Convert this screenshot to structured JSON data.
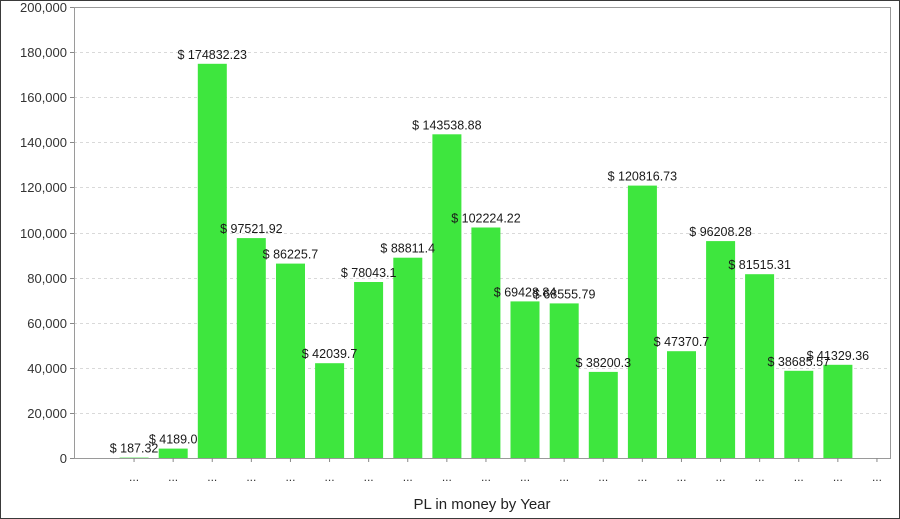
{
  "chart_data": {
    "type": "bar",
    "title": "",
    "xlabel": "PL in money by Year",
    "ylabel": "",
    "ylim": [
      0,
      200000
    ],
    "yticks": [
      0,
      20000,
      40000,
      60000,
      80000,
      100000,
      120000,
      140000,
      160000,
      180000,
      200000
    ],
    "ytick_labels": [
      "0",
      "20,000",
      "40,000",
      "60,000",
      "80,000",
      "100,000",
      "120,000",
      "140,000",
      "160,000",
      "180,000",
      "200,000"
    ],
    "grid": true,
    "legend": "none",
    "bar_color": "#3ee63e",
    "categories": [
      "...",
      "...",
      "...",
      "...",
      "...",
      "...",
      "...",
      "...",
      "...",
      "...",
      "...",
      "...",
      "...",
      "...",
      "...",
      "...",
      "...",
      "...",
      "...",
      "..."
    ],
    "values": [
      187.32,
      4189.0,
      174832.23,
      97521.92,
      86225.7,
      42039.7,
      78043.1,
      88811.4,
      143538.88,
      102224.22,
      69428.84,
      68555.79,
      38200.3,
      120816.73,
      47370.7,
      96208.28,
      81515.31,
      38685.57,
      41329.36,
      0
    ],
    "data_labels": [
      "$ 187.32",
      "$ 4189.0",
      "$ 174832.23",
      "$ 97521.92",
      "$ 86225.7",
      "$ 42039.7",
      "$ 78043.1",
      "$ 88811.4",
      "$ 143538.88",
      "$ 102224.22",
      "$ 69428.84",
      "$ 68555.79",
      "$ 38200.3",
      "$ 120816.73",
      "$ 47370.7",
      "$ 96208.28",
      "$ 81515.31",
      "$ 38685.57",
      "$ 41329.36",
      ""
    ]
  }
}
